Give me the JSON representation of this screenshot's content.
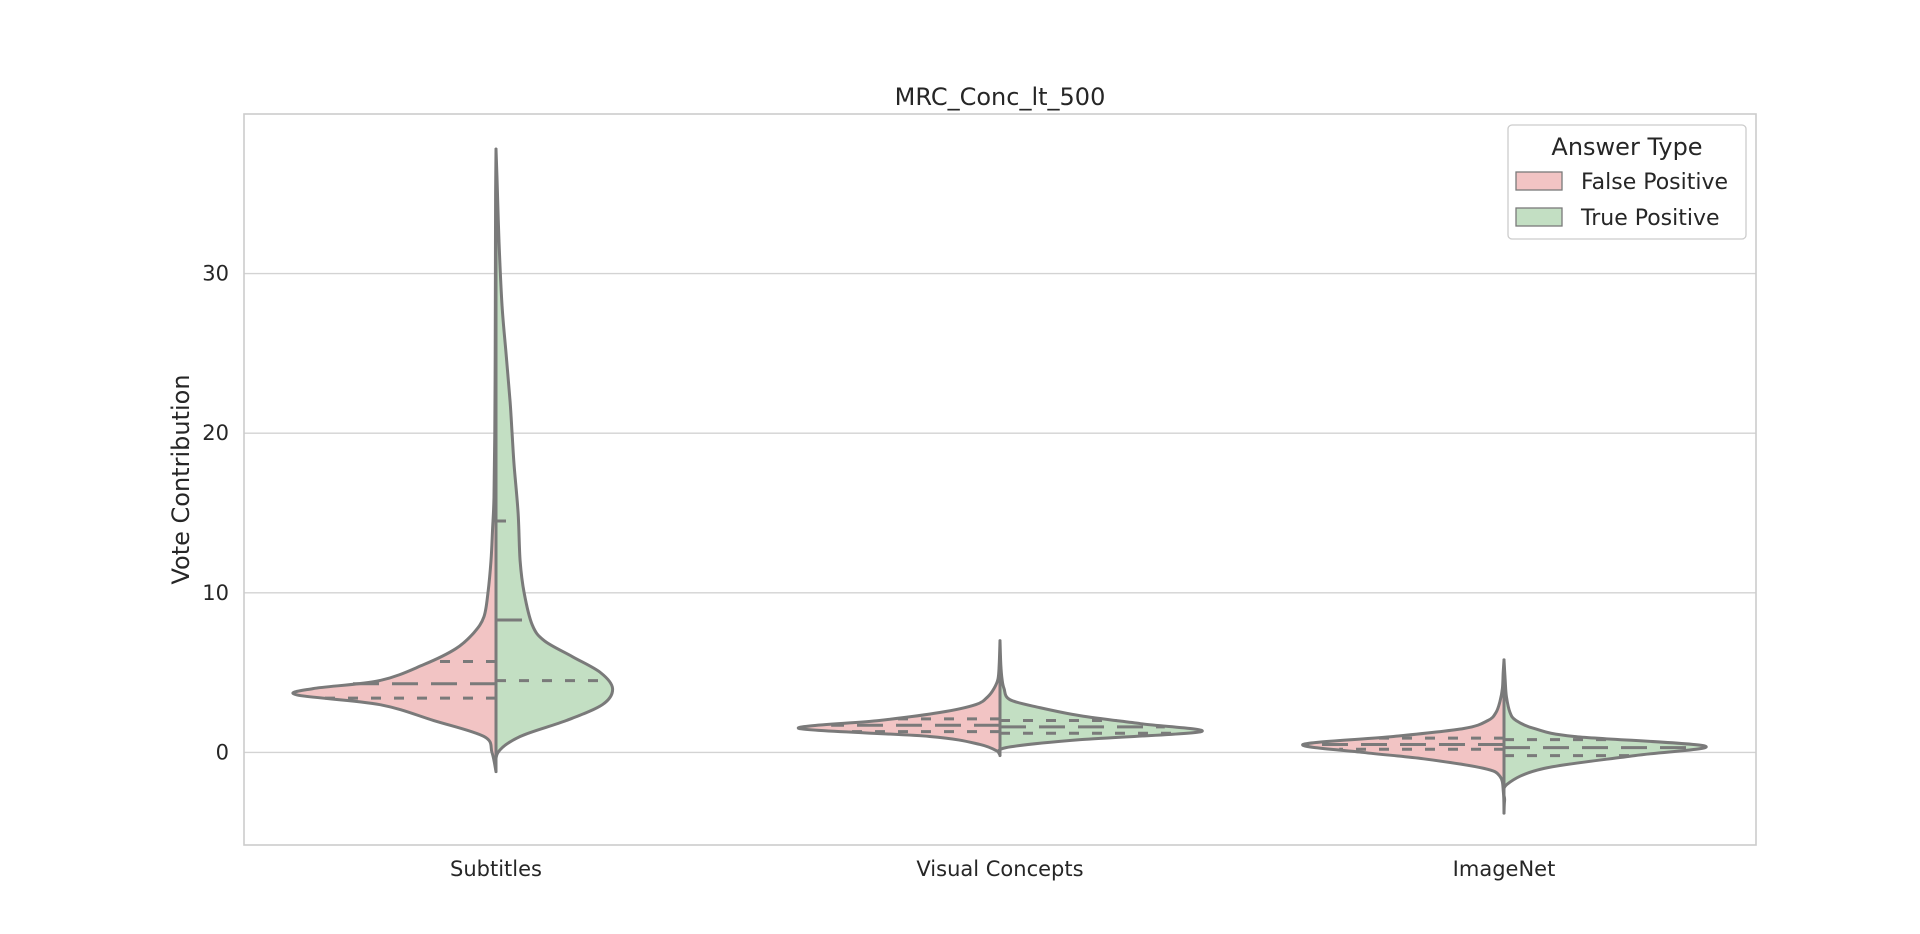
{
  "chart_data": {
    "type": "violin",
    "split": true,
    "title": "MRC_Conc_lt_500",
    "xlabel": "",
    "ylabel": "Vote Contribution",
    "ylim": [
      -5.8,
      40
    ],
    "yticks": [
      0,
      10,
      20,
      30
    ],
    "grid": true,
    "categories": [
      "Subtitles",
      "Visual Concepts",
      "ImageNet"
    ],
    "legend": {
      "title": "Answer Type",
      "placement": "top-right",
      "entries": [
        {
          "name": "False Positive",
          "color": "#f2c4c4"
        },
        {
          "name": "True Positive",
          "color": "#c3dfc3"
        }
      ]
    },
    "series": [
      {
        "name": "False Positive",
        "color": "#f2c4c4",
        "side": "left",
        "violins": [
          {
            "category": "Subtitles",
            "quartiles": [
              3.4,
              4.3,
              5.7
            ],
            "profile": [
              [
                -1.2,
                0
              ],
              [
                0,
                0.02
              ],
              [
                1,
                0.06
              ],
              [
                2,
                0.31
              ],
              [
                3,
                0.58
              ],
              [
                3.6,
                0.99
              ],
              [
                4,
                0.91
              ],
              [
                4.5,
                0.58
              ],
              [
                5.5,
                0.36
              ],
              [
                6.5,
                0.2
              ],
              [
                7.5,
                0.11
              ],
              [
                8.5,
                0.06
              ],
              [
                10,
                0.04
              ],
              [
                12,
                0.025
              ],
              [
                14,
                0.017
              ],
              [
                16,
                0.01
              ],
              [
                20,
                0.006
              ],
              [
                25,
                0.004
              ],
              [
                30,
                0.003
              ],
              [
                35,
                0.002
              ],
              [
                37.8,
                0
              ]
            ]
          },
          {
            "category": "Visual Concepts",
            "quartiles": [
              1.3,
              1.7,
              2.1
            ],
            "profile": [
              [
                0,
                0
              ],
              [
                0.5,
                0.1
              ],
              [
                1,
                0.35
              ],
              [
                1.5,
                1.0
              ],
              [
                2,
                0.6
              ],
              [
                2.5,
                0.3
              ],
              [
                3,
                0.12
              ],
              [
                3.5,
                0.06
              ],
              [
                4,
                0.03
              ],
              [
                4.6,
                0.01
              ],
              [
                5.5,
                0.004
              ],
              [
                7,
                0
              ]
            ]
          },
          {
            "category": "ImageNet",
            "quartiles": [
              0.2,
              0.5,
              0.9
            ],
            "profile": [
              [
                -3.8,
                0
              ],
              [
                -2.5,
                0.003
              ],
              [
                -1.5,
                0.02
              ],
              [
                -1,
                0.1
              ],
              [
                -0.4,
                0.4
              ],
              [
                0,
                0.7
              ],
              [
                0.5,
                1.0
              ],
              [
                1,
                0.55
              ],
              [
                1.5,
                0.2
              ],
              [
                2,
                0.08
              ],
              [
                2.5,
                0.04
              ],
              [
                3.2,
                0.02
              ],
              [
                4,
                0.008
              ],
              [
                5,
                0.004
              ],
              [
                5.8,
                0
              ]
            ]
          }
        ]
      },
      {
        "name": "True Positive",
        "color": "#c3dfc3",
        "side": "right",
        "violins": [
          {
            "category": "Subtitles",
            "quartiles": [
              4.5,
              8.3,
              14.5
            ],
            "profile": [
              [
                -1.2,
                0
              ],
              [
                0,
                0.01
              ],
              [
                1,
                0.12
              ],
              [
                2,
                0.35
              ],
              [
                3,
                0.53
              ],
              [
                4,
                0.58
              ],
              [
                5,
                0.52
              ],
              [
                6,
                0.38
              ],
              [
                7,
                0.24
              ],
              [
                8,
                0.18
              ],
              [
                10,
                0.14
              ],
              [
                12,
                0.12
              ],
              [
                15,
                0.11
              ],
              [
                18,
                0.09
              ],
              [
                20,
                0.08
              ],
              [
                22,
                0.07
              ],
              [
                25,
                0.05
              ],
              [
                28,
                0.03
              ],
              [
                32,
                0.015
              ],
              [
                36,
                0.005
              ],
              [
                37.8,
                0
              ]
            ]
          },
          {
            "category": "Visual Concepts",
            "quartiles": [
              1.2,
              1.6,
              2.0
            ],
            "profile": [
              [
                -0.2,
                0
              ],
              [
                0.3,
                0.03
              ],
              [
                0.8,
                0.4
              ],
              [
                1.3,
                1.0
              ],
              [
                1.8,
                0.7
              ],
              [
                2.3,
                0.4
              ],
              [
                2.8,
                0.2
              ],
              [
                3.3,
                0.05
              ],
              [
                4,
                0.02
              ],
              [
                4.6,
                0.01
              ],
              [
                5.5,
                0.004
              ],
              [
                7,
                0
              ]
            ]
          },
          {
            "category": "ImageNet",
            "quartiles": [
              -0.2,
              0.3,
              0.8
            ],
            "profile": [
              [
                -3.8,
                0
              ],
              [
                -3,
                0.003
              ],
              [
                -2,
                0.015
              ],
              [
                -1,
                0.2
              ],
              [
                -0.2,
                0.65
              ],
              [
                0.4,
                1.0
              ],
              [
                1,
                0.35
              ],
              [
                1.5,
                0.15
              ],
              [
                2,
                0.06
              ],
              [
                2.5,
                0.03
              ],
              [
                3.5,
                0.012
              ],
              [
                4.5,
                0.006
              ],
              [
                5.8,
                0
              ]
            ]
          }
        ]
      }
    ]
  }
}
